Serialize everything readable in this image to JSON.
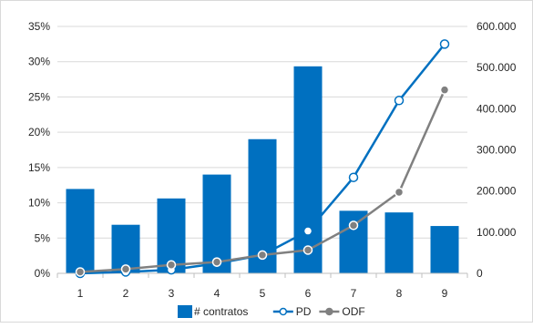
{
  "chart_data": {
    "type": "bar",
    "categories": [
      "1",
      "2",
      "3",
      "4",
      "5",
      "6",
      "7",
      "8",
      "9"
    ],
    "series": [
      {
        "name": "# contratos",
        "type": "bar",
        "axis": "right",
        "color": "#0070c0",
        "values": [
          205000,
          118000,
          182000,
          240000,
          326000,
          503000,
          152000,
          148000,
          115000
        ]
      },
      {
        "name": "PD",
        "type": "line",
        "axis": "left",
        "color": "#0070c0",
        "marker": "open-circle",
        "values": [
          0.0,
          0.2,
          0.5,
          1.4,
          2.6,
          6.0,
          13.6,
          24.5,
          32.5
        ]
      },
      {
        "name": "ODF",
        "type": "line",
        "axis": "left",
        "color": "#808080",
        "marker": "filled-circle",
        "values": [
          0.2,
          0.6,
          1.2,
          1.6,
          2.6,
          3.3,
          6.8,
          11.5,
          26.0
        ]
      }
    ],
    "y_left": {
      "ylim": [
        0,
        35
      ],
      "ticks": [
        0,
        5,
        10,
        15,
        20,
        25,
        30,
        35
      ],
      "tick_labels": [
        "0%",
        "5%",
        "10%",
        "15%",
        "20%",
        "25%",
        "30%",
        "35%"
      ]
    },
    "y_right": {
      "ylim": [
        0,
        600000
      ],
      "ticks": [
        0,
        100000,
        200000,
        300000,
        400000,
        500000,
        600000
      ],
      "tick_labels": [
        "0",
        "100.000",
        "200.000",
        "300.000",
        "400.000",
        "500.000",
        "600.000"
      ]
    },
    "grid": true,
    "legend_placement": "bottom"
  }
}
